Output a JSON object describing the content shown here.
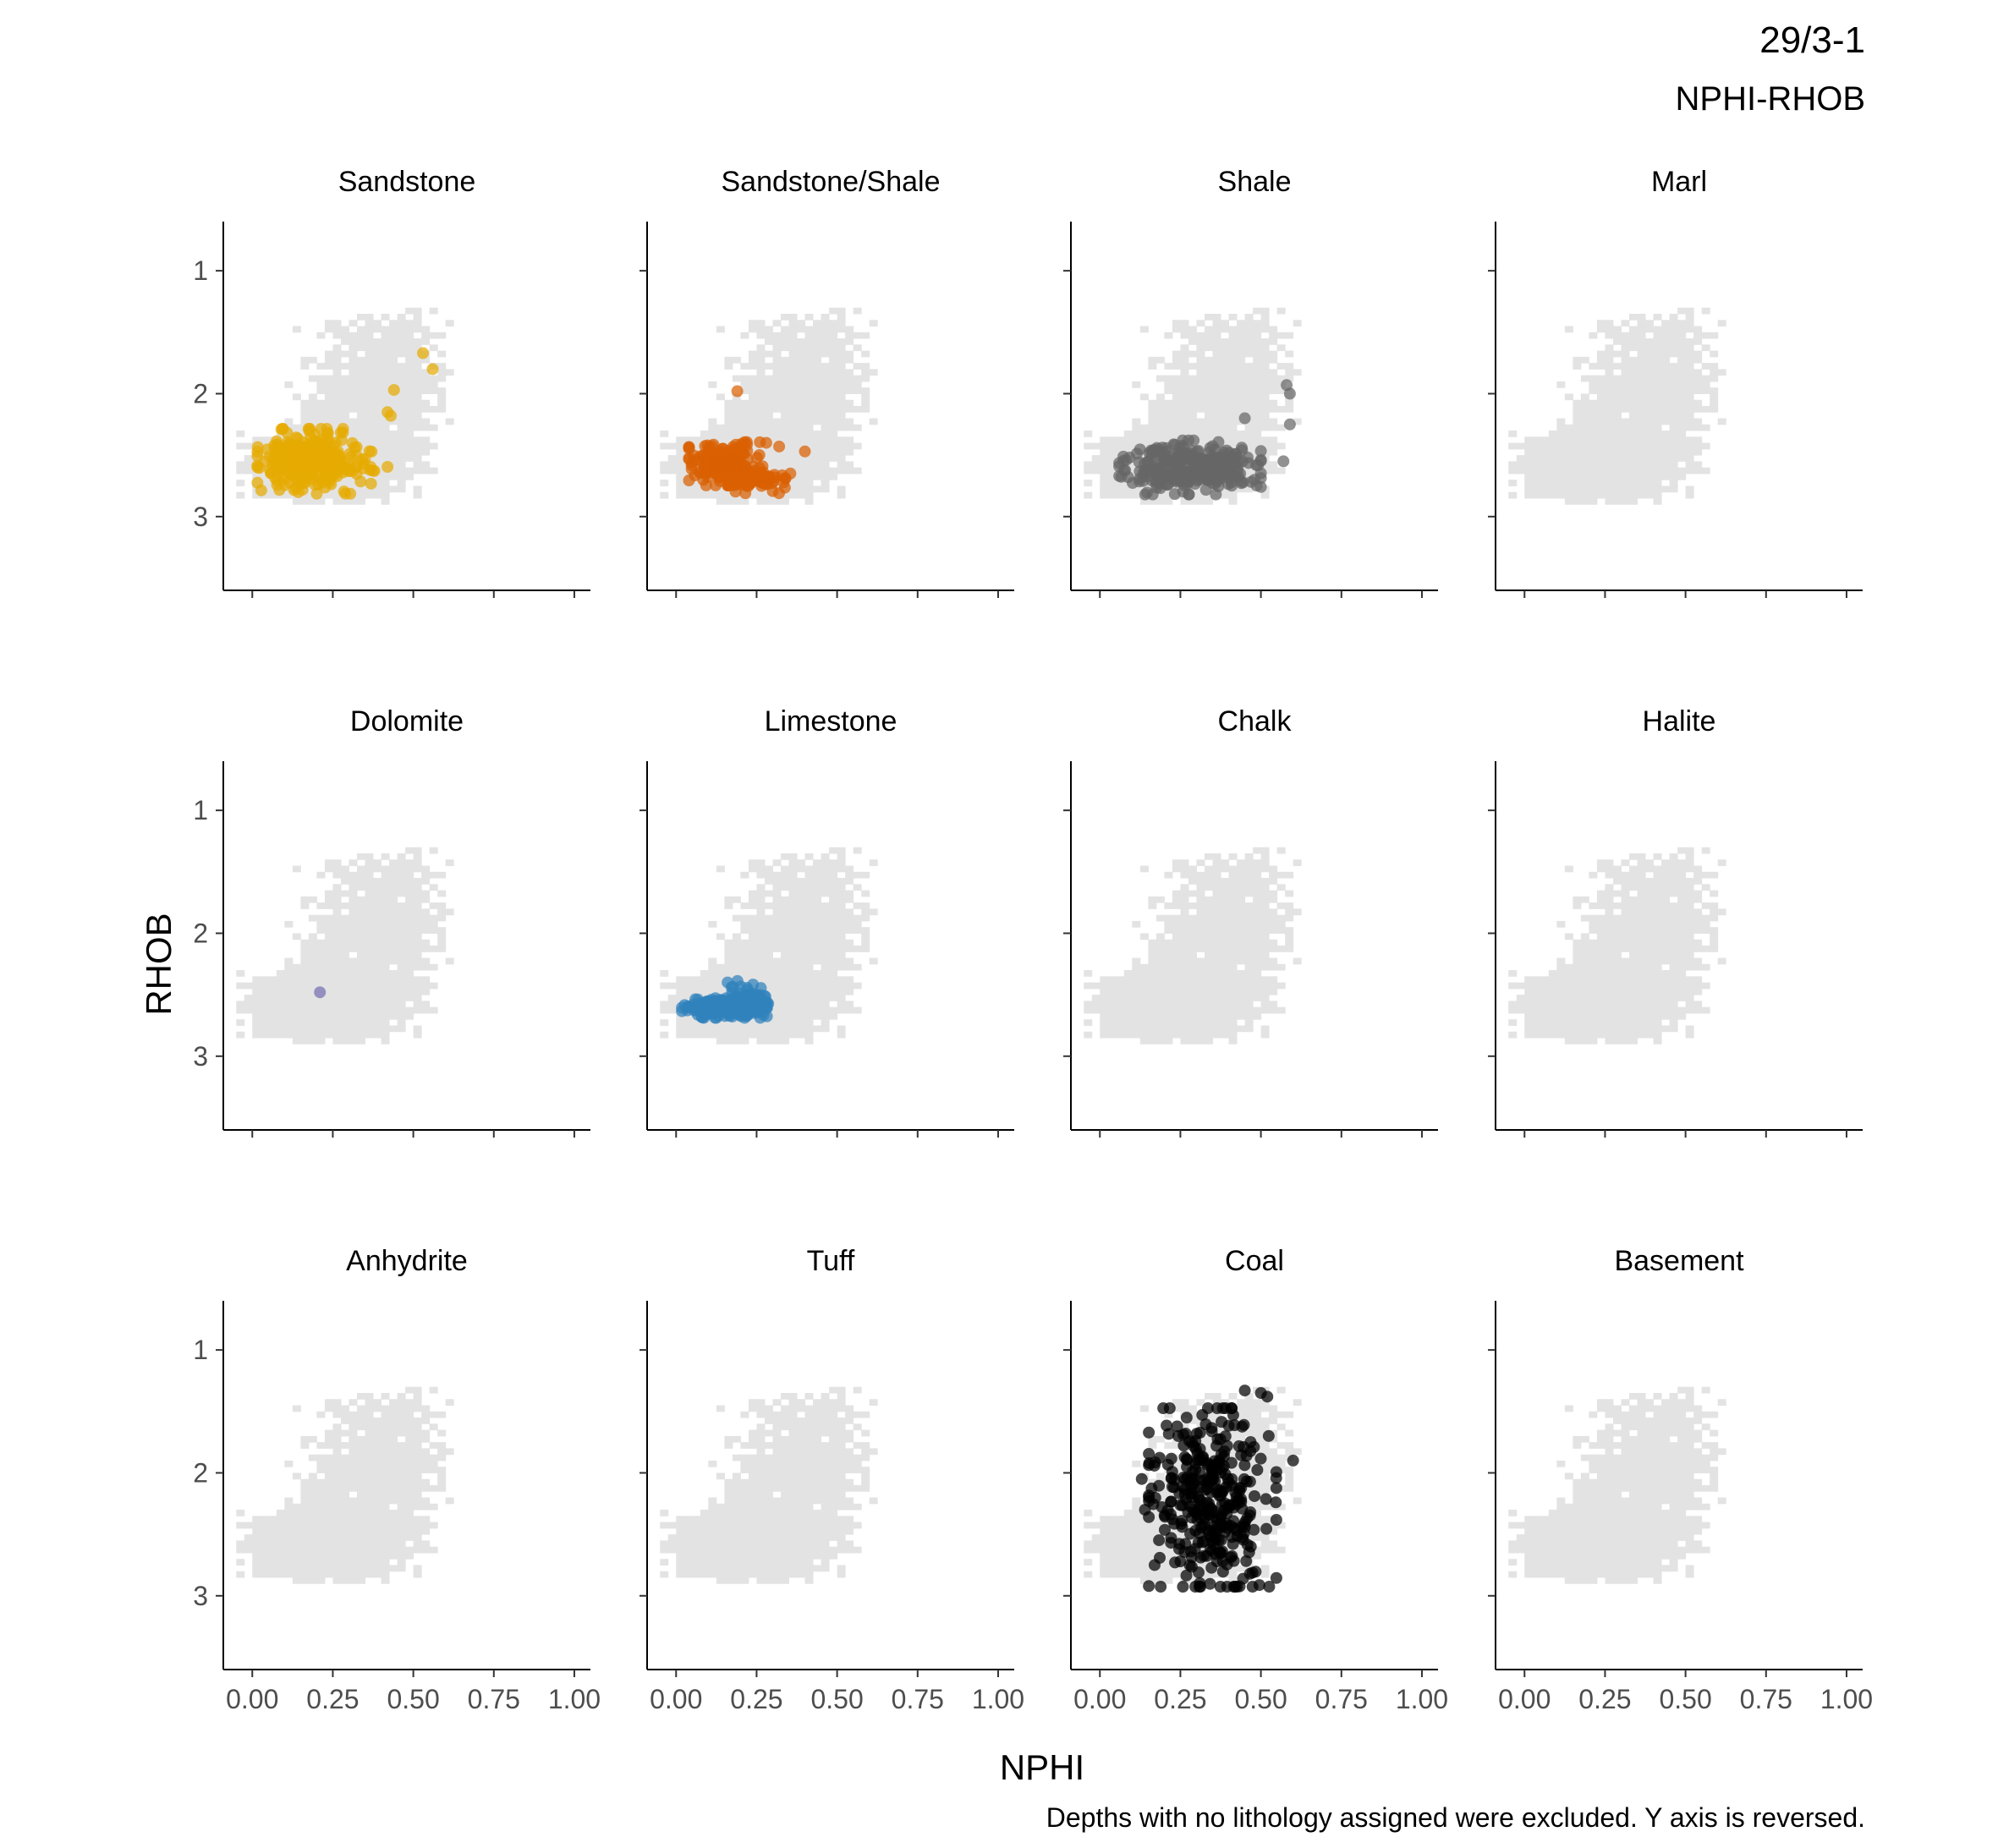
{
  "title": "29/3-1",
  "subtitle": "NPHI-RHOB",
  "caption": "Depths with no lithology assigned were excluded. Y axis is reversed.",
  "chart_data": {
    "type": "scatter",
    "xlabel": "NPHI",
    "ylabel": "RHOB",
    "xlim": [
      -0.09,
      1.05
    ],
    "ylim": [
      3.6,
      0.6
    ],
    "y_reversed": true,
    "x_ticks": [
      0.0,
      0.25,
      0.5,
      0.75,
      1.0
    ],
    "x_tick_labels": [
      "0.00",
      "0.25",
      "0.50",
      "0.75",
      "1.00"
    ],
    "y_ticks": [
      1,
      2,
      3
    ],
    "y_tick_labels": [
      "1",
      "2",
      "3"
    ],
    "grid": false,
    "legend": "none",
    "background_color": "#e3e3e3",
    "facets": [
      {
        "name": "Sandstone",
        "color": "#e6ab02",
        "clusters": [
          {
            "cx": 0.17,
            "cy": 2.55,
            "sx": 0.07,
            "sy": 0.12,
            "n": 260
          },
          {
            "cx": 0.31,
            "cy": 2.6,
            "sx": 0.05,
            "sy": 0.06,
            "n": 30
          }
        ],
        "points": [
          [
            0.53,
            1.67
          ],
          [
            0.56,
            1.8
          ],
          [
            0.44,
            1.97
          ],
          [
            0.42,
            2.15
          ],
          [
            0.43,
            2.18
          ]
        ]
      },
      {
        "name": "Sandstone/Shale",
        "color": "#d95f02",
        "clusters": [
          {
            "cx": 0.15,
            "cy": 2.57,
            "sx": 0.05,
            "sy": 0.08,
            "n": 180
          },
          {
            "cx": 0.27,
            "cy": 2.7,
            "sx": 0.05,
            "sy": 0.05,
            "n": 50
          }
        ],
        "points": [
          [
            0.19,
            1.98
          ],
          [
            0.4,
            2.47
          ],
          [
            0.32,
            2.43
          ],
          [
            0.28,
            2.4
          ]
        ]
      },
      {
        "name": "Shale",
        "color": "#666666",
        "clusters": [
          {
            "cx": 0.28,
            "cy": 2.6,
            "sx": 0.1,
            "sy": 0.1,
            "n": 300
          }
        ],
        "points": [
          [
            0.58,
            1.93
          ],
          [
            0.59,
            2.0
          ],
          [
            0.59,
            2.25
          ],
          [
            0.57,
            2.55
          ],
          [
            0.48,
            2.7
          ],
          [
            0.45,
            2.2
          ]
        ]
      },
      {
        "name": "Marl",
        "color": "#999999",
        "clusters": [],
        "points": []
      },
      {
        "name": "Dolomite",
        "color": "#7570b3",
        "clusters": [],
        "points": [
          [
            0.21,
            2.48
          ]
        ]
      },
      {
        "name": "Limestone",
        "color": "#3182bd",
        "clusters": [
          {
            "cx": 0.15,
            "cy": 2.6,
            "sx": 0.06,
            "sy": 0.04,
            "n": 220
          },
          {
            "cx": 0.22,
            "cy": 2.52,
            "sx": 0.03,
            "sy": 0.06,
            "n": 40
          }
        ],
        "points": [
          [
            0.16,
            2.4
          ]
        ]
      },
      {
        "name": "Chalk",
        "color": "#999999",
        "clusters": [],
        "points": []
      },
      {
        "name": "Halite",
        "color": "#999999",
        "clusters": [],
        "points": []
      },
      {
        "name": "Anhydrite",
        "color": "#999999",
        "clusters": [],
        "points": []
      },
      {
        "name": "Tuff",
        "color": "#999999",
        "clusters": [],
        "points": []
      },
      {
        "name": "Coal",
        "color": "#000000",
        "clusters": [
          {
            "cx": 0.35,
            "cy": 2.2,
            "sx": 0.09,
            "sy": 0.33,
            "n": 330
          }
        ],
        "points": [
          [
            0.17,
            2.75
          ],
          [
            0.25,
            2.72
          ],
          [
            0.5,
            1.35
          ],
          [
            0.45,
            1.33
          ],
          [
            0.52,
            1.38
          ],
          [
            0.6,
            1.9
          ],
          [
            0.14,
            2.3
          ],
          [
            0.13,
            2.05
          ]
        ]
      },
      {
        "name": "Basement",
        "color": "#999999",
        "clusters": [],
        "points": []
      }
    ]
  }
}
